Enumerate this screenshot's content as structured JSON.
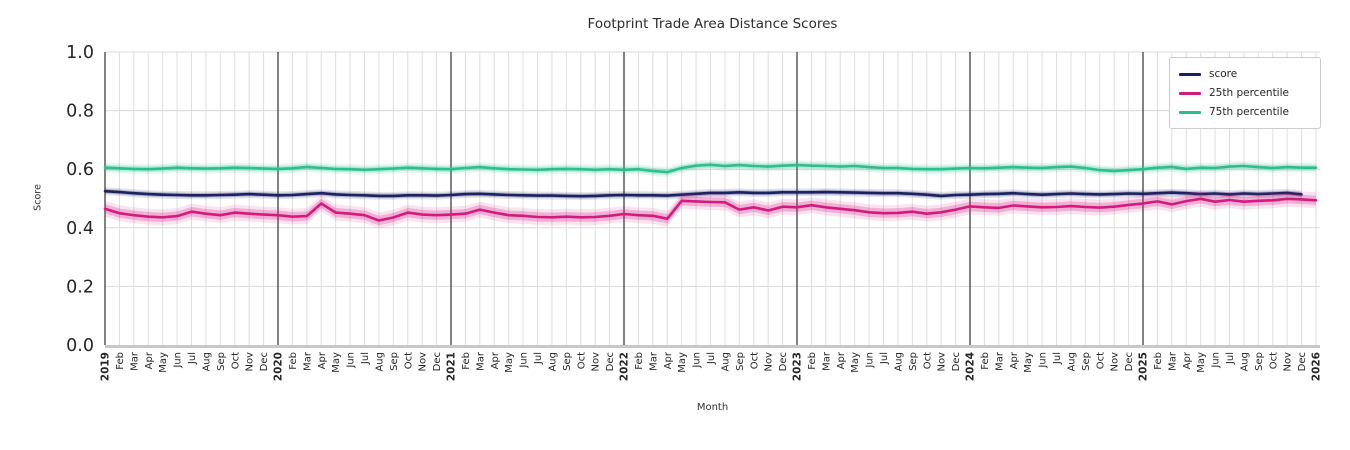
{
  "title": "Footprint Trade Area Distance Scores",
  "chart_data": {
    "type": "line",
    "title": "Footprint Trade Area Distance Scores",
    "xlabel": "Month",
    "ylabel": "Score",
    "ylim": [
      0.0,
      1.0
    ],
    "y_tick_labels": [
      "0.0",
      "0.2",
      "0.4",
      "0.6",
      "0.8",
      "1.0"
    ],
    "grid": true,
    "legend_position": "upper right",
    "x_tick_labels": [
      "2019",
      "Feb",
      "Mar",
      "Apr",
      "May",
      "Jun",
      "Jul",
      "Aug",
      "Sep",
      "Oct",
      "Nov",
      "Dec",
      "2020",
      "Feb",
      "Mar",
      "Apr",
      "May",
      "Jun",
      "Jul",
      "Aug",
      "Sep",
      "Oct",
      "Nov",
      "Dec",
      "2021",
      "Feb",
      "Mar",
      "Apr",
      "May",
      "Jun",
      "Jul",
      "Aug",
      "Sep",
      "Oct",
      "Nov",
      "Dec",
      "2022",
      "Feb",
      "Mar",
      "Apr",
      "May",
      "Jun",
      "Jul",
      "Aug",
      "Sep",
      "Oct",
      "Nov",
      "Dec",
      "2023",
      "Feb",
      "Mar",
      "Apr",
      "May",
      "Jun",
      "Jul",
      "Aug",
      "Sep",
      "Oct",
      "Nov",
      "Dec",
      "2024",
      "Feb",
      "Mar",
      "Apr",
      "May",
      "Jun",
      "Jul",
      "Aug",
      "Sep",
      "Oct",
      "Nov",
      "Dec",
      "2025",
      "Feb",
      "Mar",
      "Apr",
      "May",
      "Jun",
      "Jul",
      "Aug",
      "Sep",
      "Oct",
      "Nov",
      "Dec",
      "2026"
    ],
    "year_line_indices": [
      0,
      12,
      24,
      36,
      48,
      60,
      72
    ],
    "series": [
      {
        "name": "score",
        "color": "#1c2160",
        "band_halfwidth": 0.008,
        "values": [
          0.525,
          0.522,
          0.518,
          0.515,
          0.513,
          0.512,
          0.511,
          0.511,
          0.512,
          0.513,
          0.515,
          0.513,
          0.511,
          0.512,
          0.515,
          0.518,
          0.514,
          0.512,
          0.511,
          0.509,
          0.509,
          0.511,
          0.511,
          0.51,
          0.512,
          0.515,
          0.516,
          0.514,
          0.512,
          0.511,
          0.51,
          0.51,
          0.509,
          0.508,
          0.509,
          0.511,
          0.512,
          0.511,
          0.511,
          0.51,
          0.513,
          0.516,
          0.519,
          0.519,
          0.521,
          0.519,
          0.519,
          0.521,
          0.521,
          0.521,
          0.522,
          0.521,
          0.52,
          0.519,
          0.518,
          0.518,
          0.516,
          0.513,
          0.509,
          0.512,
          0.513,
          0.515,
          0.516,
          0.518,
          0.515,
          0.513,
          0.515,
          0.517,
          0.515,
          0.514,
          0.515,
          0.517,
          0.516,
          0.518,
          0.52,
          0.518,
          0.515,
          0.517,
          0.514,
          0.517,
          0.515,
          0.517,
          0.519,
          0.514,
          null
        ]
      },
      {
        "name": "25th percentile",
        "color": "#d41a80",
        "band_halfwidth": 0.016,
        "values": [
          0.465,
          0.45,
          0.443,
          0.438,
          0.436,
          0.44,
          0.455,
          0.448,
          0.443,
          0.452,
          0.448,
          0.445,
          0.443,
          0.438,
          0.44,
          0.483,
          0.452,
          0.448,
          0.443,
          0.425,
          0.435,
          0.452,
          0.445,
          0.443,
          0.445,
          0.448,
          0.462,
          0.452,
          0.443,
          0.441,
          0.437,
          0.436,
          0.438,
          0.436,
          0.437,
          0.441,
          0.447,
          0.443,
          0.441,
          0.431,
          0.492,
          0.49,
          0.488,
          0.487,
          0.462,
          0.47,
          0.459,
          0.472,
          0.47,
          0.477,
          0.47,
          0.465,
          0.46,
          0.453,
          0.45,
          0.451,
          0.455,
          0.448,
          0.453,
          0.462,
          0.473,
          0.47,
          0.468,
          0.476,
          0.473,
          0.47,
          0.471,
          0.474,
          0.471,
          0.469,
          0.472,
          0.478,
          0.483,
          0.49,
          0.48,
          0.491,
          0.499,
          0.489,
          0.495,
          0.489,
          0.492,
          0.494,
          0.499,
          0.497,
          0.494
        ]
      },
      {
        "name": "75th percentile",
        "color": "#2dbe8e",
        "band_halfwidth": 0.01,
        "values": [
          0.605,
          0.603,
          0.601,
          0.6,
          0.602,
          0.605,
          0.603,
          0.602,
          0.603,
          0.605,
          0.604,
          0.602,
          0.601,
          0.603,
          0.608,
          0.604,
          0.601,
          0.6,
          0.598,
          0.6,
          0.602,
          0.605,
          0.603,
          0.601,
          0.6,
          0.604,
          0.607,
          0.603,
          0.6,
          0.599,
          0.598,
          0.6,
          0.601,
          0.6,
          0.598,
          0.6,
          0.598,
          0.6,
          0.594,
          0.59,
          0.604,
          0.612,
          0.615,
          0.611,
          0.614,
          0.611,
          0.609,
          0.612,
          0.614,
          0.612,
          0.611,
          0.609,
          0.611,
          0.607,
          0.604,
          0.604,
          0.601,
          0.6,
          0.6,
          0.602,
          0.604,
          0.603,
          0.605,
          0.607,
          0.605,
          0.604,
          0.607,
          0.609,
          0.604,
          0.597,
          0.594,
          0.597,
          0.6,
          0.605,
          0.608,
          0.601,
          0.605,
          0.604,
          0.609,
          0.611,
          0.607,
          0.604,
          0.607,
          0.605,
          0.605
        ]
      }
    ]
  }
}
